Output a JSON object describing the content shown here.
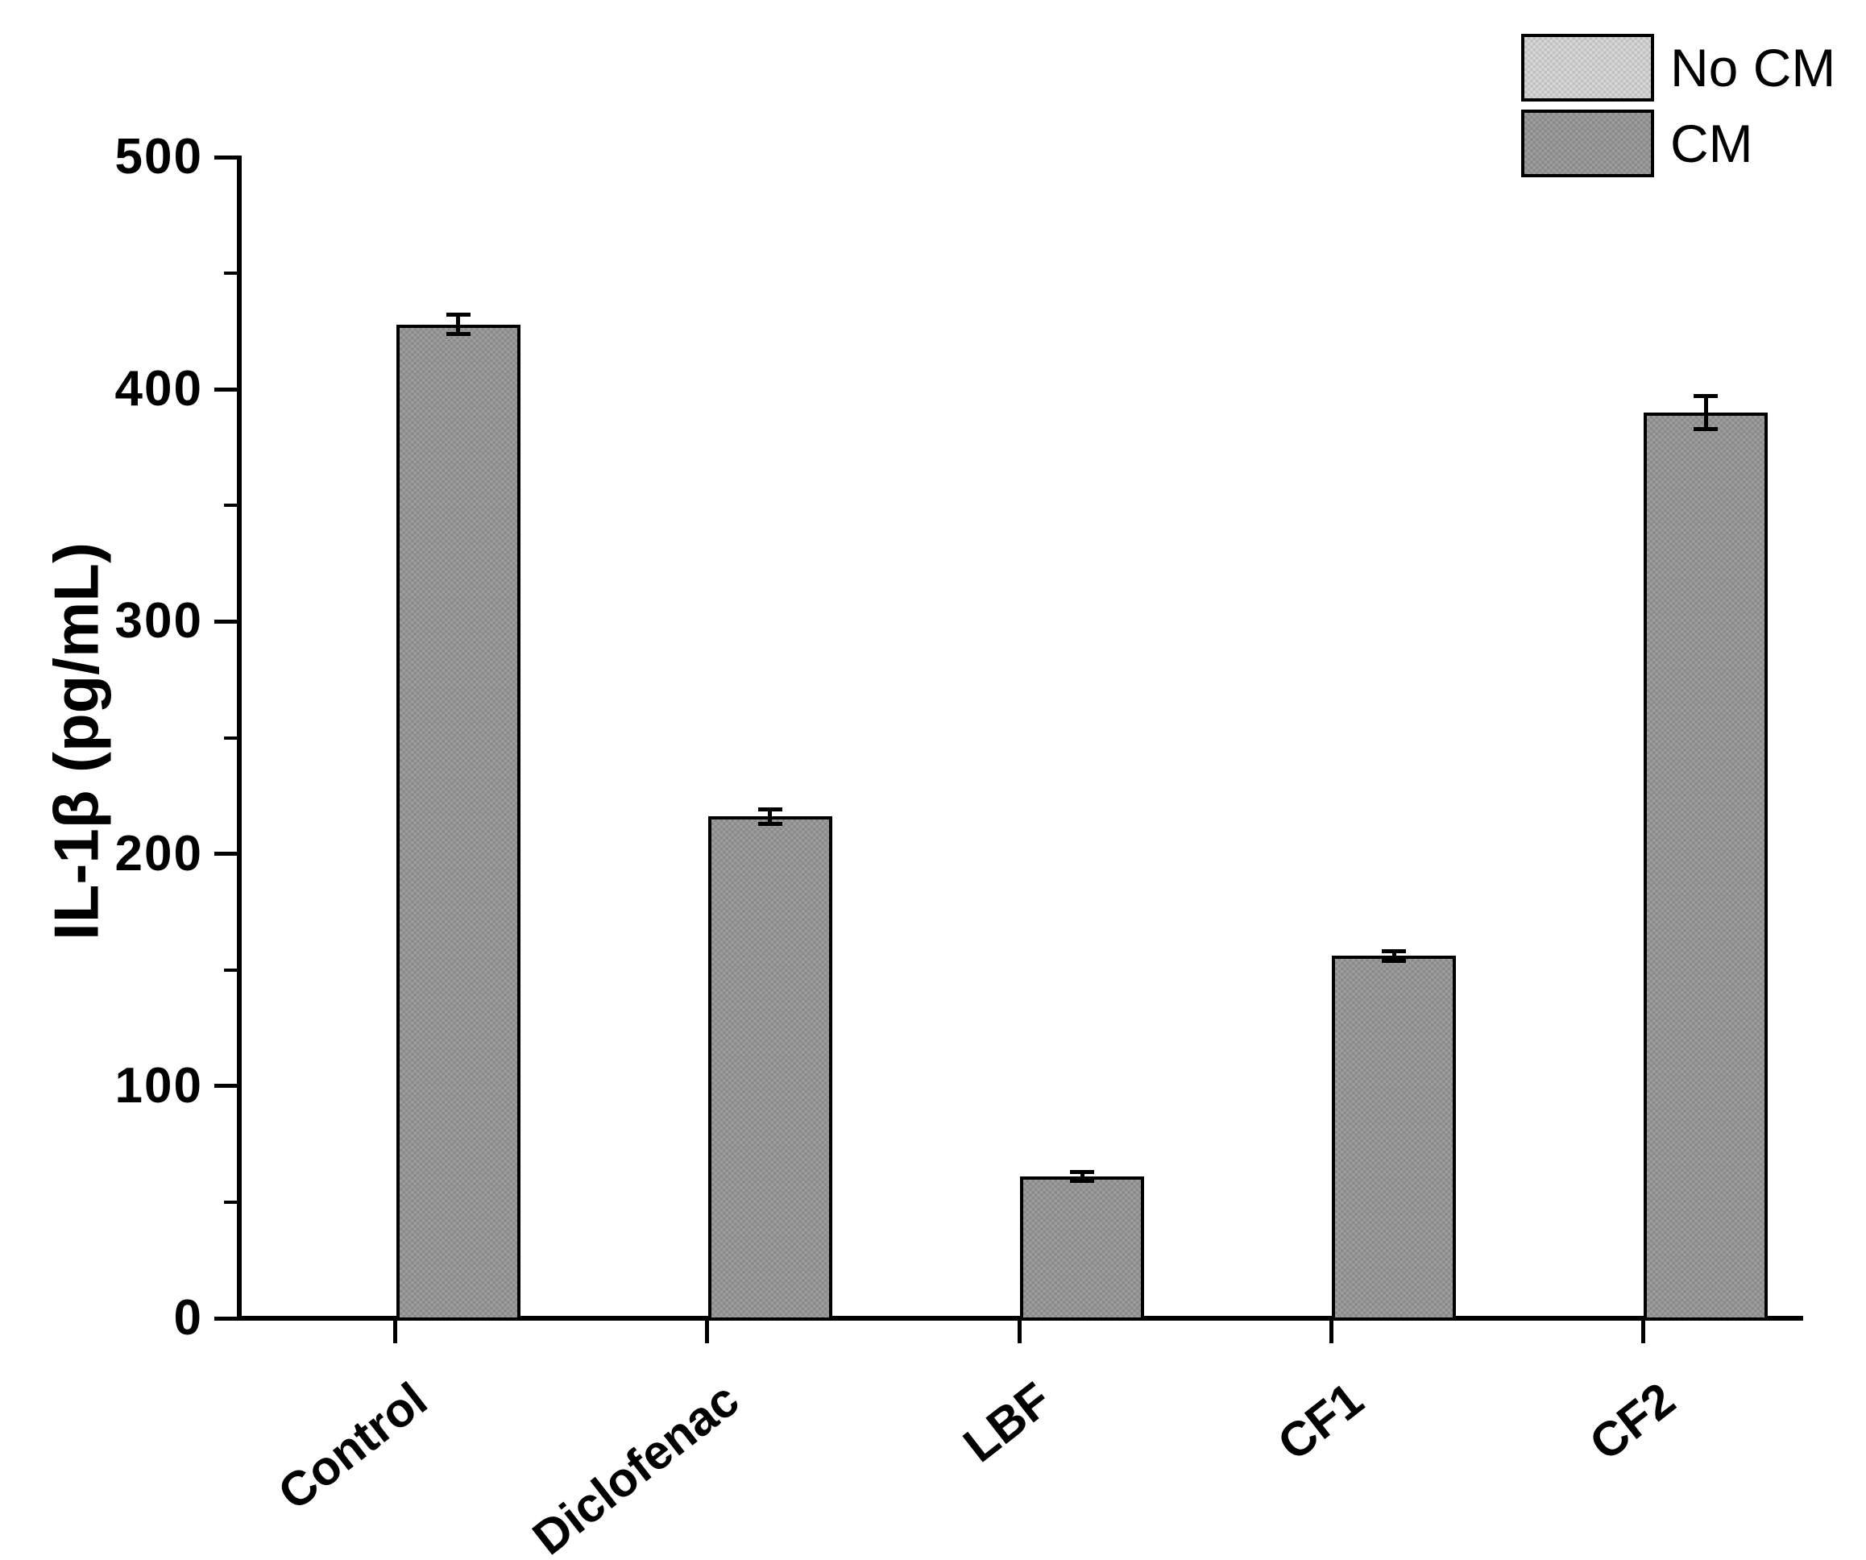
{
  "chart_data": {
    "type": "bar",
    "title": "",
    "ylabel": "IL-1β (pg/mL)",
    "xlabel": "",
    "ylim": [
      0,
      500
    ],
    "y_major_ticks": [
      0,
      100,
      200,
      300,
      400,
      500
    ],
    "y_minor_tick_interval": 50,
    "categories": [
      "Control",
      "Diclofenac",
      "LBF",
      "CF1",
      "CF2"
    ],
    "series": [
      {
        "name": "No CM",
        "color": "#d4d4d4",
        "values": [
          0,
          0,
          0,
          0,
          0
        ],
        "errors": [
          0,
          0,
          0,
          0,
          0
        ]
      },
      {
        "name": "CM",
        "color": "#989898",
        "values": [
          428,
          216,
          61,
          156,
          390
        ],
        "errors": [
          4,
          3,
          2,
          2,
          7
        ]
      }
    ],
    "bar_border_color": "#000000",
    "error_bar_color": "#000000",
    "axis_color": "#000000",
    "background_color": "#ffffff",
    "legend_position": "top-right",
    "grid": false
  }
}
